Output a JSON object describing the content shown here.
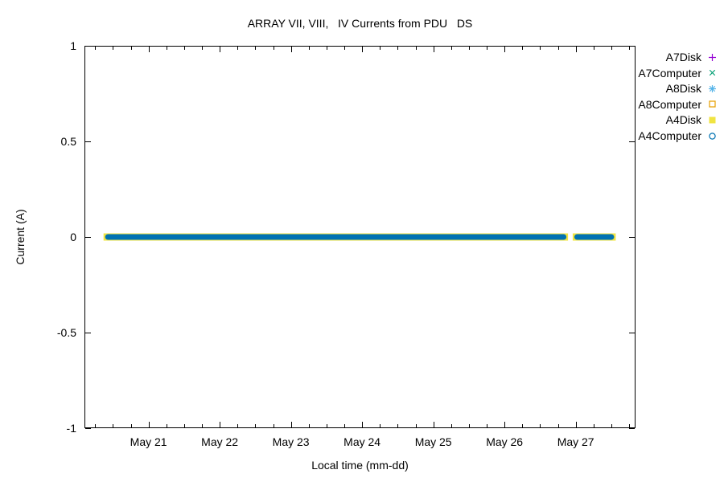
{
  "chart_data": {
    "type": "scatter",
    "title": "ARRAY VII, VIII,   IV Currents from PDU   DS",
    "xlabel": "Local time (mm-dd)",
    "ylabel": "Current (A)",
    "background_color": "#ffffff",
    "axis_color": "#000000",
    "grid": false,
    "ylim": [
      -1,
      1
    ],
    "yticks": [
      {
        "v": 1,
        "label": "1"
      },
      {
        "v": 0.5,
        "label": "0.5"
      },
      {
        "v": 0,
        "label": "0"
      },
      {
        "v": -0.5,
        "label": "-0.5"
      },
      {
        "v": -1,
        "label": "-1"
      }
    ],
    "x_axis_unit": "day of May",
    "xlim": [
      20.1,
      27.84
    ],
    "xticks": [
      {
        "v": 21,
        "label": "May 21"
      },
      {
        "v": 22,
        "label": "May 22"
      },
      {
        "v": 23,
        "label": "May 23"
      },
      {
        "v": 24,
        "label": "May 24"
      },
      {
        "v": 25,
        "label": "May 25"
      },
      {
        "v": 26,
        "label": "May 26"
      },
      {
        "v": 27,
        "label": "May 27"
      }
    ],
    "minor_xtick_step": 0.25,
    "legend_position": "outside-top-right",
    "series": [
      {
        "name": "A7Disk",
        "marker": "plus",
        "color": "#9400D3",
        "y": 0,
        "x_segments": []
      },
      {
        "name": "A7Computer",
        "marker": "cross",
        "color": "#009E73",
        "y": 0,
        "x_segments": []
      },
      {
        "name": "A8Disk",
        "marker": "asterisk",
        "color": "#56B4E9",
        "y": 0,
        "x_segments": []
      },
      {
        "name": "A8Computer",
        "marker": "open-square",
        "color": "#E69F00",
        "y": 0,
        "x_segments": []
      },
      {
        "name": "A4Disk",
        "marker": "filled-square",
        "color": "#F0E442",
        "y": 0,
        "x_segments": [
          [
            20.43,
            26.83
          ],
          [
            27.02,
            27.5
          ]
        ]
      },
      {
        "name": "A4Computer",
        "marker": "open-circle",
        "color": "#0072B2",
        "y": 0,
        "x_segments": [
          [
            20.43,
            26.83
          ],
          [
            27.02,
            27.5
          ]
        ]
      }
    ]
  }
}
